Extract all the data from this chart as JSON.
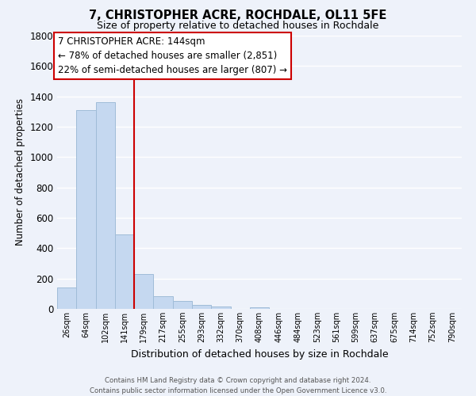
{
  "title": "7, CHRISTOPHER ACRE, ROCHDALE, OL11 5FE",
  "subtitle": "Size of property relative to detached houses in Rochdale",
  "xlabel": "Distribution of detached houses by size in Rochdale",
  "ylabel": "Number of detached properties",
  "bar_labels": [
    "26sqm",
    "64sqm",
    "102sqm",
    "141sqm",
    "179sqm",
    "217sqm",
    "255sqm",
    "293sqm",
    "332sqm",
    "370sqm",
    "408sqm",
    "446sqm",
    "484sqm",
    "523sqm",
    "561sqm",
    "599sqm",
    "637sqm",
    "675sqm",
    "714sqm",
    "752sqm",
    "790sqm"
  ],
  "bar_values": [
    140,
    1310,
    1360,
    490,
    230,
    85,
    50,
    25,
    15,
    0,
    10,
    0,
    0,
    0,
    0,
    0,
    0,
    0,
    0,
    0,
    0
  ],
  "bar_color": "#c5d8f0",
  "bar_edge_color": "#a0bcd8",
  "vline_index": 3,
  "vline_color": "#cc0000",
  "ylim": [
    0,
    1800
  ],
  "yticks": [
    0,
    200,
    400,
    600,
    800,
    1000,
    1200,
    1400,
    1600,
    1800
  ],
  "annotation_title": "7 CHRISTOPHER ACRE: 144sqm",
  "annotation_line1": "← 78% of detached houses are smaller (2,851)",
  "annotation_line2": "22% of semi-detached houses are larger (807) →",
  "annotation_box_color": "#ffffff",
  "annotation_box_edge": "#cc0000",
  "footer_line1": "Contains HM Land Registry data © Crown copyright and database right 2024.",
  "footer_line2": "Contains public sector information licensed under the Open Government Licence v3.0.",
  "bg_color": "#eef2fa",
  "plot_bg_color": "#eef2fa",
  "grid_color": "#ffffff"
}
